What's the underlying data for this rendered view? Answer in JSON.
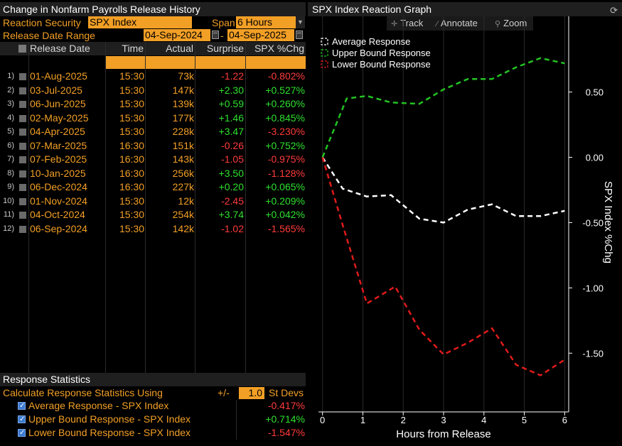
{
  "left_panel": {
    "title": "Change in Nonfarm Payrolls Release History",
    "reaction_security_label": "Reaction Security",
    "reaction_security_value": "SPX Index",
    "span_label": "Span",
    "span_value": "6 Hours",
    "release_range_label": "Release Date Range",
    "range_start": "04-Sep-2024",
    "range_sep": "-",
    "range_end": "04-Sep-2025",
    "columns": [
      "Release Date",
      "Time",
      "Actual",
      "Surprise",
      "SPX %Chg"
    ],
    "rows": [
      {
        "idx": "1)",
        "date": "01-Aug-2025",
        "time": "15:30",
        "actual": "73k",
        "surprise": "-1.22",
        "chg": "-0.802%"
      },
      {
        "idx": "2)",
        "date": "03-Jul-2025",
        "time": "15:30",
        "actual": "147k",
        "surprise": "+2.30",
        "chg": "+0.527%"
      },
      {
        "idx": "3)",
        "date": "06-Jun-2025",
        "time": "15:30",
        "actual": "139k",
        "surprise": "+0.59",
        "chg": "+0.260%"
      },
      {
        "idx": "4)",
        "date": "02-May-2025",
        "time": "15:30",
        "actual": "177k",
        "surprise": "+1.46",
        "chg": "+0.845%"
      },
      {
        "idx": "5)",
        "date": "04-Apr-2025",
        "time": "15:30",
        "actual": "228k",
        "surprise": "+3.47",
        "chg": "-3.230%"
      },
      {
        "idx": "6)",
        "date": "07-Mar-2025",
        "time": "16:30",
        "actual": "151k",
        "surprise": "-0.26",
        "chg": "+0.752%"
      },
      {
        "idx": "7)",
        "date": "07-Feb-2025",
        "time": "16:30",
        "actual": "143k",
        "surprise": "-1.05",
        "chg": "-0.975%"
      },
      {
        "idx": "8)",
        "date": "10-Jan-2025",
        "time": "16:30",
        "actual": "256k",
        "surprise": "+3.50",
        "chg": "-1.128%"
      },
      {
        "idx": "9)",
        "date": "06-Dec-2024",
        "time": "16:30",
        "actual": "227k",
        "surprise": "+0.20",
        "chg": "+0.065%"
      },
      {
        "idx": "10)",
        "date": "01-Nov-2024",
        "time": "15:30",
        "actual": "12k",
        "surprise": "-2.45",
        "chg": "+0.209%"
      },
      {
        "idx": "11)",
        "date": "04-Oct-2024",
        "time": "15:30",
        "actual": "254k",
        "surprise": "+3.74",
        "chg": "+0.042%"
      },
      {
        "idx": "12)",
        "date": "06-Sep-2024",
        "time": "15:30",
        "actual": "142k",
        "surprise": "-1.02",
        "chg": "-1.565%"
      }
    ],
    "stats": {
      "title": "Response Statistics",
      "calc_label": "Calculate Response Statistics Using",
      "pm_label": "+/-",
      "std_value": "1.0",
      "std_unit": "St Devs",
      "items": [
        {
          "label": "Average Response - SPX Index",
          "value": "-0.417%"
        },
        {
          "label": "Upper Bound Response - SPX Index",
          "value": "+0.714%"
        },
        {
          "label": "Lower Bound Response - SPX Index",
          "value": "-1.547%"
        }
      ]
    }
  },
  "right_panel": {
    "title": "SPX Index Reaction Graph",
    "refresh_icon": "refresh-icon",
    "toolbar": {
      "track": "Track",
      "annotate": "Annotate",
      "zoom": "Zoom"
    },
    "colors": {
      "avg": "#ffffff",
      "upper": "#22c322",
      "lower": "#e01b1b",
      "orange": "#f29f26"
    }
  },
  "chart_data": {
    "type": "line",
    "xlabel": "Hours from Release",
    "ylabel": "SPX Index %Chg",
    "xlim": [
      -0.1,
      6.1
    ],
    "ylim": [
      -1.95,
      1.08
    ],
    "xticks": [
      0,
      1,
      2,
      3,
      4,
      5,
      6
    ],
    "yticks": [
      0.5,
      0.0,
      -0.5,
      -1.0,
      -1.5
    ],
    "ytick_labels": [
      "0.50",
      "0.00",
      "-0.50",
      "-1.00",
      "-1.50"
    ],
    "legend_position": "top-left",
    "series": [
      {
        "name": "Average Response",
        "color": "#ffffff",
        "x": [
          0,
          0.5,
          1.1,
          1.7,
          2.4,
          3.0,
          3.6,
          4.2,
          4.8,
          5.4,
          6.0
        ],
        "y": [
          0.0,
          -0.24,
          -0.3,
          -0.29,
          -0.47,
          -0.5,
          -0.4,
          -0.36,
          -0.45,
          -0.45,
          -0.41
        ]
      },
      {
        "name": "Upper Bound Response",
        "color": "#22c322",
        "x": [
          0,
          0.6,
          1.1,
          1.7,
          2.4,
          3.0,
          3.6,
          4.2,
          4.8,
          5.4,
          6.0
        ],
        "y": [
          0.0,
          0.45,
          0.47,
          0.42,
          0.41,
          0.52,
          0.6,
          0.6,
          0.69,
          0.76,
          0.72
        ]
      },
      {
        "name": "Lower Bound Response",
        "color": "#e01b1b",
        "x": [
          0,
          0.5,
          1.1,
          1.8,
          2.4,
          3.0,
          3.6,
          4.2,
          4.8,
          5.4,
          6.0
        ],
        "y": [
          0.0,
          -0.52,
          -1.12,
          -0.99,
          -1.32,
          -1.51,
          -1.42,
          -1.31,
          -1.59,
          -1.67,
          -1.55
        ]
      }
    ]
  }
}
